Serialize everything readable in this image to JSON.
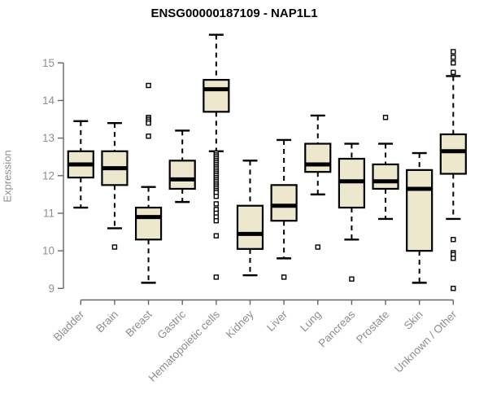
{
  "colors": {
    "box_fill": "#EDE7CE",
    "box_border": "#000000",
    "median": "#000000",
    "whisker": "#000000",
    "outlier_fill": "#FFFFFF",
    "axis_line": "#666666",
    "axis_text": "#8E8E8E",
    "title": "#000000",
    "background": "#FFFFFF"
  },
  "chart_data": {
    "type": "boxplot",
    "title": "ENSG00000187109 - NAP1L1",
    "xlabel": "",
    "ylabel": "Expression",
    "ylim": [
      9,
      15
    ],
    "yticks": [
      9,
      10,
      11,
      12,
      13,
      14,
      15
    ],
    "grid": "off",
    "legend": "none",
    "categories": [
      "Bladder",
      "Brain",
      "Breast",
      "Gastric",
      "Hematopoietic cells",
      "Kidney",
      "Liver",
      "Lung",
      "Pancreas",
      "Prostate",
      "Skin",
      "Unknown / Other"
    ],
    "boxes": [
      {
        "category": "Bladder",
        "whisker_low": 11.15,
        "q1": 11.95,
        "median": 12.3,
        "q3": 12.65,
        "whisker_high": 13.45,
        "outliers": []
      },
      {
        "category": "Brain",
        "whisker_low": 10.6,
        "q1": 11.75,
        "median": 12.2,
        "q3": 12.65,
        "whisker_high": 13.4,
        "outliers": [
          10.1
        ]
      },
      {
        "category": "Breast",
        "whisker_low": 9.15,
        "q1": 10.3,
        "median": 10.9,
        "q3": 11.15,
        "whisker_high": 11.7,
        "outliers": [
          14.4,
          13.55,
          13.5,
          13.45,
          13.4,
          13.05
        ]
      },
      {
        "category": "Gastric",
        "whisker_low": 11.3,
        "q1": 11.65,
        "median": 11.9,
        "q3": 12.4,
        "whisker_high": 13.2,
        "outliers": []
      },
      {
        "category": "Hematopoietic cells",
        "whisker_low": 12.65,
        "q1": 13.7,
        "median": 14.3,
        "q3": 14.55,
        "whisker_high": 15.75,
        "outliers": [
          12.6,
          12.55,
          12.5,
          12.45,
          12.4,
          12.35,
          12.3,
          12.25,
          12.2,
          12.15,
          12.1,
          12.05,
          12.0,
          11.95,
          11.9,
          11.85,
          11.8,
          11.75,
          11.7,
          11.65,
          11.6,
          11.55,
          11.45,
          11.25,
          11.1,
          11.0,
          10.9,
          10.8,
          10.4,
          9.3
        ]
      },
      {
        "category": "Kidney",
        "whisker_low": 9.35,
        "q1": 10.05,
        "median": 10.45,
        "q3": 11.2,
        "whisker_high": 12.4,
        "outliers": []
      },
      {
        "category": "Liver",
        "whisker_low": 9.8,
        "q1": 10.8,
        "median": 11.2,
        "q3": 11.75,
        "whisker_high": 12.95,
        "outliers": [
          9.3
        ]
      },
      {
        "category": "Lung",
        "whisker_low": 11.5,
        "q1": 12.1,
        "median": 12.3,
        "q3": 12.85,
        "whisker_high": 13.6,
        "outliers": [
          10.1
        ]
      },
      {
        "category": "Pancreas",
        "whisker_low": 10.3,
        "q1": 11.15,
        "median": 11.85,
        "q3": 12.45,
        "whisker_high": 12.85,
        "outliers": [
          9.25
        ]
      },
      {
        "category": "Prostate",
        "whisker_low": 10.85,
        "q1": 11.65,
        "median": 11.85,
        "q3": 12.3,
        "whisker_high": 12.85,
        "outliers": [
          13.55
        ]
      },
      {
        "category": "Skin",
        "whisker_low": 9.15,
        "q1": 10.0,
        "median": 11.65,
        "q3": 12.15,
        "whisker_high": 12.6,
        "outliers": []
      },
      {
        "category": "Unknown / Other",
        "whisker_low": 10.85,
        "q1": 12.05,
        "median": 12.65,
        "q3": 13.1,
        "whisker_high": 14.65,
        "outliers": [
          15.3,
          15.15,
          15.0,
          14.75,
          10.3,
          9.95,
          9.9,
          9.8,
          9.0
        ]
      }
    ]
  }
}
